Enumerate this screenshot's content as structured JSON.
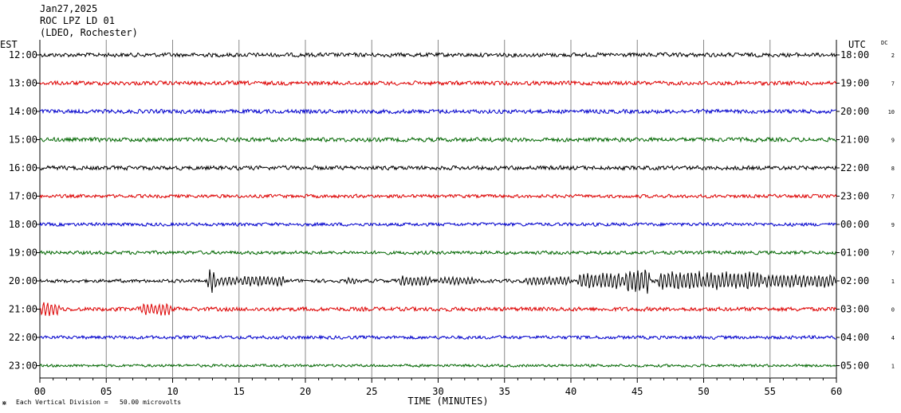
{
  "header": {
    "date": "Jan27,2025",
    "station": "ROC LPZ LD 01",
    "network": "(LDEO, Rochester)"
  },
  "axis_titles": {
    "left": "EST",
    "right": "UTC",
    "dc": "DC"
  },
  "footer": {
    "scale_note": "Each Vertical Division =   50.00 microvolts"
  },
  "colors": {
    "black": "#000000",
    "red": "#dd0000",
    "blue": "#0000cc",
    "green": "#006600",
    "grid": "#888888"
  },
  "chart_data": {
    "type": "line",
    "title": "",
    "xlabel": "TIME (MINUTES)",
    "xlim": [
      0,
      60
    ],
    "x_ticks": [
      "00",
      "05",
      "10",
      "15",
      "20",
      "25",
      "30",
      "35",
      "40",
      "45",
      "50",
      "55",
      "60"
    ],
    "series": [
      {
        "est": "12:00",
        "utc": "18:00",
        "dc": "2",
        "color": "black",
        "noise": 3.0
      },
      {
        "est": "13:00",
        "utc": "19:00",
        "dc": "7",
        "color": "red",
        "noise": 3.0
      },
      {
        "est": "14:00",
        "utc": "20:00",
        "dc": "10",
        "color": "blue",
        "noise": 3.0
      },
      {
        "est": "15:00",
        "utc": "21:00",
        "dc": "9",
        "color": "green",
        "noise": 3.0
      },
      {
        "est": "16:00",
        "utc": "22:00",
        "dc": "8",
        "color": "black",
        "noise": 3.0
      },
      {
        "est": "17:00",
        "utc": "23:00",
        "dc": "7",
        "color": "red",
        "noise": 2.5
      },
      {
        "est": "18:00",
        "utc": "00:00",
        "dc": "9",
        "color": "blue",
        "noise": 2.5
      },
      {
        "est": "19:00",
        "utc": "01:00",
        "dc": "7",
        "color": "green",
        "noise": 2.5
      },
      {
        "est": "20:00",
        "utc": "02:00",
        "dc": "1",
        "color": "black",
        "noise": 2.5,
        "events": [
          {
            "start": 12.6,
            "end": 13.3,
            "amp": 17
          },
          {
            "start": 13.3,
            "end": 15.0,
            "amp": 6
          },
          {
            "start": 15.0,
            "end": 18.5,
            "amp": 7
          },
          {
            "start": 23.0,
            "end": 24.0,
            "amp": 5
          },
          {
            "start": 27.0,
            "end": 29.5,
            "amp": 7
          },
          {
            "start": 30.0,
            "end": 33.0,
            "amp": 5
          },
          {
            "start": 36.5,
            "end": 40.0,
            "amp": 6
          },
          {
            "start": 40.5,
            "end": 44.0,
            "amp": 11
          },
          {
            "start": 44.0,
            "end": 46.0,
            "amp": 17
          },
          {
            "start": 46.5,
            "end": 50.0,
            "amp": 13
          },
          {
            "start": 50.0,
            "end": 54.5,
            "amp": 12
          },
          {
            "start": 54.5,
            "end": 60.0,
            "amp": 9
          }
        ]
      },
      {
        "est": "21:00",
        "utc": "03:00",
        "dc": "0",
        "color": "red",
        "noise": 3.0,
        "events": [
          {
            "start": 0.0,
            "end": 1.5,
            "amp": 10
          },
          {
            "start": 7.5,
            "end": 10.0,
            "amp": 8
          }
        ]
      },
      {
        "est": "22:00",
        "utc": "04:00",
        "dc": "4",
        "color": "blue",
        "noise": 2.5
      },
      {
        "est": "23:00",
        "utc": "05:00",
        "dc": "1",
        "color": "green",
        "noise": 2.0
      }
    ]
  }
}
